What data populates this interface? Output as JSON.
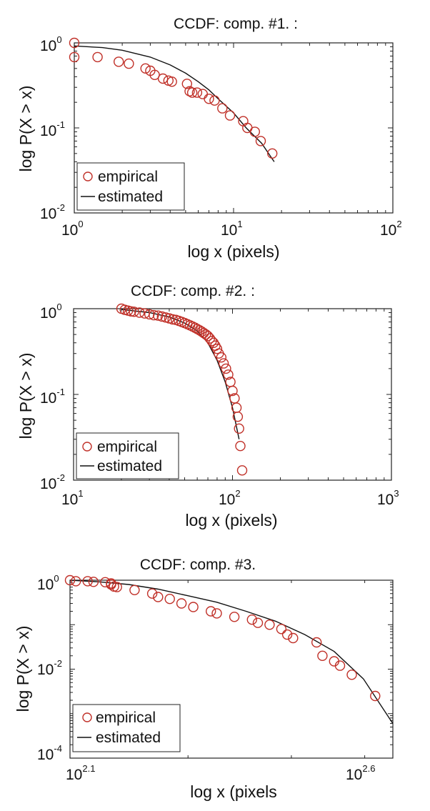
{
  "chart_data": [
    {
      "type": "scatter",
      "title": "CCDF: comp. #1. :",
      "xlabel": "log x (pixels)",
      "ylabel": "log P(X > x)",
      "xscale": "log",
      "yscale": "log",
      "xlim": [
        1,
        100
      ],
      "ylim": [
        0.01,
        1
      ],
      "xticks": [
        {
          "base": "10",
          "exp": "0"
        },
        {
          "base": "10",
          "exp": "1"
        },
        {
          "base": "10",
          "exp": "2"
        }
      ],
      "yticks": [
        {
          "base": "10",
          "exp": "0"
        },
        {
          "base": "10",
          "exp": "-1"
        },
        {
          "base": "10",
          "exp": "-2"
        }
      ],
      "legend": {
        "position": "lower-left",
        "entries": [
          "empirical",
          "estimated"
        ]
      },
      "series": [
        {
          "name": "empirical",
          "style": "red circles",
          "x": [
            1.0,
            1.0,
            1.4,
            1.9,
            2.2,
            2.8,
            3.0,
            3.2,
            3.6,
            3.9,
            4.1,
            5.1,
            5.3,
            5.5,
            5.9,
            6.4,
            7.0,
            7.6,
            8.5,
            9.5,
            11.5,
            12.2,
            13.6,
            14.8,
            17.5
          ],
          "y": [
            1.0,
            0.68,
            0.68,
            0.6,
            0.57,
            0.5,
            0.47,
            0.42,
            0.38,
            0.36,
            0.35,
            0.33,
            0.27,
            0.26,
            0.26,
            0.25,
            0.22,
            0.21,
            0.17,
            0.14,
            0.12,
            0.1,
            0.09,
            0.07,
            0.05
          ]
        },
        {
          "name": "estimated",
          "style": "black line",
          "x": [
            1.0,
            1.5,
            2.0,
            3.0,
            4.0,
            5.0,
            6.0,
            7.0,
            8.0,
            10.0,
            12.0,
            15.0,
            18.0
          ],
          "y": [
            0.92,
            0.88,
            0.82,
            0.68,
            0.55,
            0.44,
            0.35,
            0.28,
            0.22,
            0.15,
            0.1,
            0.066,
            0.04
          ]
        }
      ]
    },
    {
      "type": "scatter",
      "title": "CCDF: comp. #2. :",
      "xlabel": "log x (pixels)",
      "ylabel": "log P(X > x)",
      "xscale": "log",
      "yscale": "log",
      "xlim": [
        10,
        1000
      ],
      "ylim": [
        0.01,
        1
      ],
      "xticks": [
        {
          "base": "10",
          "exp": "1"
        },
        {
          "base": "10",
          "exp": "2"
        },
        {
          "base": "10",
          "exp": "3"
        }
      ],
      "yticks": [
        {
          "base": "10",
          "exp": "0"
        },
        {
          "base": "10",
          "exp": "-1"
        },
        {
          "base": "10",
          "exp": "-2"
        }
      ],
      "legend": {
        "position": "lower-left",
        "entries": [
          "empirical",
          "estimated"
        ]
      },
      "series": [
        {
          "name": "empirical",
          "style": "red circles",
          "x": [
            20,
            21,
            22,
            23,
            24,
            26,
            28,
            30,
            32,
            34,
            36,
            38,
            40,
            42,
            44,
            46,
            48,
            50,
            52,
            54,
            56,
            58,
            60,
            62,
            64,
            66,
            68,
            70,
            72,
            74,
            76,
            78,
            80,
            82,
            85,
            88,
            91,
            94,
            97,
            100,
            103,
            106,
            108,
            110,
            112,
            115
          ],
          "y": [
            1.0,
            0.97,
            0.95,
            0.93,
            0.92,
            0.9,
            0.88,
            0.86,
            0.84,
            0.83,
            0.81,
            0.79,
            0.77,
            0.75,
            0.74,
            0.72,
            0.7,
            0.68,
            0.66,
            0.64,
            0.62,
            0.6,
            0.58,
            0.56,
            0.54,
            0.52,
            0.5,
            0.48,
            0.45,
            0.42,
            0.4,
            0.37,
            0.34,
            0.3,
            0.27,
            0.23,
            0.2,
            0.17,
            0.14,
            0.11,
            0.09,
            0.07,
            0.055,
            0.04,
            0.025,
            0.013
          ]
        },
        {
          "name": "estimated",
          "style": "black line",
          "x": [
            20,
            30,
            40,
            50,
            60,
            70,
            80,
            90,
            100,
            110
          ],
          "y": [
            0.98,
            0.9,
            0.8,
            0.68,
            0.55,
            0.4,
            0.25,
            0.14,
            0.07,
            0.03
          ]
        }
      ]
    },
    {
      "type": "scatter",
      "title": "CCDF: comp. #3.",
      "xlabel": "log x (pixels",
      "ylabel": "log P(X > x)",
      "xscale": "log",
      "yscale": "log",
      "xlim_log10": [
        2.1,
        2.65
      ],
      "ylim": [
        0.0001,
        1
      ],
      "xticks": [
        {
          "base": "10",
          "exp": "2.1",
          "log10": 2.1
        },
        {
          "base": "10",
          "exp": "2.6",
          "log10": 2.6
        }
      ],
      "yticks": [
        {
          "base": "10",
          "exp": "0"
        },
        {
          "base": "10",
          "exp": "-2"
        },
        {
          "base": "10",
          "exp": "-4"
        }
      ],
      "legend": {
        "position": "lower-left",
        "entries": [
          "empirical",
          "estimated"
        ]
      },
      "series": [
        {
          "name": "empirical",
          "style": "red circles",
          "x_log10": [
            2.1,
            2.11,
            2.13,
            2.14,
            2.16,
            2.17,
            2.17,
            2.175,
            2.18,
            2.21,
            2.24,
            2.25,
            2.27,
            2.29,
            2.31,
            2.34,
            2.35,
            2.38,
            2.41,
            2.42,
            2.44,
            2.46,
            2.47,
            2.48,
            2.52,
            2.53,
            2.55,
            2.56,
            2.58,
            2.62
          ],
          "y": [
            1.0,
            0.95,
            0.95,
            0.92,
            0.9,
            0.85,
            0.8,
            0.72,
            0.7,
            0.6,
            0.5,
            0.42,
            0.38,
            0.3,
            0.25,
            0.2,
            0.18,
            0.15,
            0.13,
            0.11,
            0.1,
            0.08,
            0.06,
            0.05,
            0.04,
            0.02,
            0.015,
            0.012,
            0.0075,
            0.0025
          ]
        },
        {
          "name": "estimated",
          "style": "black line",
          "x_log10": [
            2.1,
            2.15,
            2.2,
            2.25,
            2.3,
            2.35,
            2.4,
            2.45,
            2.5,
            2.55,
            2.6,
            2.65
          ],
          "y": [
            1.0,
            0.92,
            0.8,
            0.63,
            0.45,
            0.32,
            0.2,
            0.12,
            0.06,
            0.025,
            0.006,
            0.0006
          ]
        }
      ]
    }
  ]
}
